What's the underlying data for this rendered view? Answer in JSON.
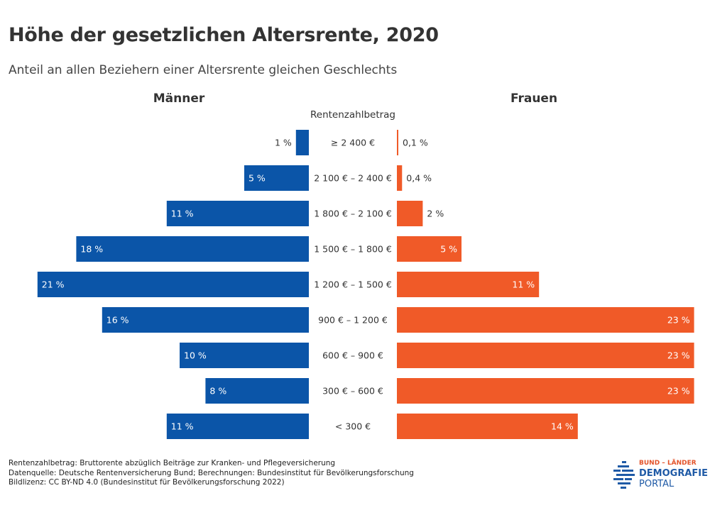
{
  "title": "Höhe der gesetzlichen Altersrente, 2020",
  "subtitle": "Anteil an allen Beziehern einer Altersrente gleichen Geschlechts",
  "panels": {
    "left": "Männer",
    "right": "Frauen"
  },
  "category_header": "Rentenzahlbetrag",
  "colors": {
    "maenner": "#0b55a8",
    "frauen": "#f05a28"
  },
  "chart_data": {
    "type": "bar",
    "categories": [
      "≥ 2 400 €",
      "2 100 € – 2 400 €",
      "1 800 € – 2 100 €",
      "1 500 € – 1 800 €",
      "1 200 € – 1 500 €",
      "900 € – 1 200 €",
      "600 € – 900 €",
      "300 € – 600 €",
      "< 300 €"
    ],
    "series": [
      {
        "name": "Männer",
        "values": [
          1,
          5,
          11,
          18,
          21,
          16,
          10,
          8,
          11
        ],
        "labels": [
          "1 %",
          "5 %",
          "11 %",
          "18 %",
          "21 %",
          "16 %",
          "10 %",
          "8 %",
          "11 %"
        ]
      },
      {
        "name": "Frauen",
        "values": [
          0.1,
          0.4,
          2,
          5,
          11,
          23,
          23,
          23,
          14
        ],
        "labels": [
          "0,1 %",
          "0,4 %",
          "2 %",
          "5 %",
          "11 %",
          "23 %",
          "23 %",
          "23 %",
          "14 %"
        ]
      }
    ],
    "xlabel": "",
    "ylabel": "Rentenzahlbetrag",
    "grid": false
  },
  "footnotes": [
    "Rentenzahlbetrag: Bruttorente abzüglich Beiträge zur Kranken- und Pflegeversicherung",
    "Datenquelle: Deutsche Rentenversicherung Bund; Berechnungen: Bundesinstitut für Bevölkerungsforschung",
    "Bildlizenz: CC BY-ND 4.0 (Bundesinstitut für Bevölkerungsforschung 2022)"
  ],
  "logo": {
    "top": "BUND – LÄNDER",
    "middle": "DEMOGRAFIE",
    "bottom": "PORTAL"
  }
}
